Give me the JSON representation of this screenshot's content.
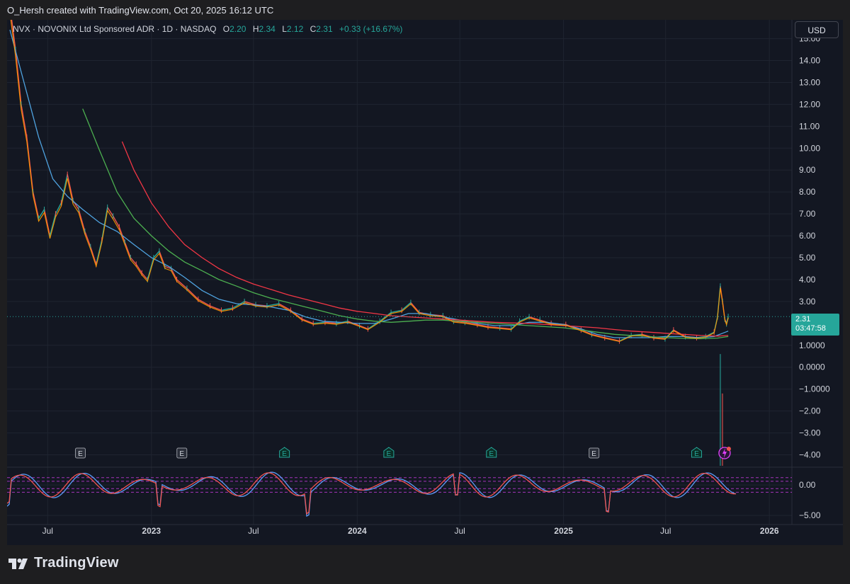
{
  "header": {
    "credit": "O_Hersh created with TradingView.com, Oct 20, 2025 16:12 UTC"
  },
  "legend": {
    "symbol": "NVX · NOVONIX Ltd Sponsored ADR · 1D · NASDAQ",
    "open_label": "O",
    "open": "2.20",
    "high_label": "H",
    "high": "2.34",
    "low_label": "L",
    "low": "2.12",
    "close_label": "C",
    "close": "2.31",
    "change": "+0.33 (+16.67%)"
  },
  "currency_button": "USD",
  "last_price": {
    "price": "2.31",
    "countdown": "03:47:58"
  },
  "footer": {
    "brand": "TradingView"
  },
  "colors": {
    "background": "#131722",
    "grid": "#1f2430",
    "up": "#26a69a",
    "down": "#ef5350",
    "ma_orange": "#ff9800",
    "ma_blue": "#2962ff",
    "ma_lightblue": "#4fa3e0",
    "ma_green": "#4caf50",
    "ma_red": "#f23645",
    "stoch_k": "#5b9cf6",
    "stoch_d": "#ef5350",
    "stoch_levels": "#e040fb"
  },
  "chart_data": [
    {
      "type": "line",
      "title": "NVX · NOVONIX Ltd Sponsored ADR · 1D · NASDAQ",
      "xlabel": "",
      "ylabel": "",
      "x_ticks": [
        "Jul",
        "2023",
        "Jul",
        "2024",
        "Jul",
        "2025",
        "Jul",
        "2026"
      ],
      "x_tick_dates": [
        "2022-07-01",
        "2023-01-01",
        "2023-07-01",
        "2024-01-01",
        "2024-07-01",
        "2025-01-01",
        "2025-07-01",
        "2026-01-01"
      ],
      "x_range": [
        "2022-04-20",
        "2026-02-10"
      ],
      "y_ticks": [
        "15.00",
        "14.00",
        "13.00",
        "12.00",
        "11.00",
        "10.00",
        "9.00",
        "8.00",
        "7.00",
        "6.00",
        "5.00",
        "4.00",
        "3.00",
        "1.0000",
        "0.0000",
        "−1.0000",
        "−2.00",
        "−3.00",
        "−4.00"
      ],
      "y_range": [
        -4.5,
        15.6
      ],
      "grid": true,
      "series": [
        {
          "role": "price",
          "points": [
            [
              "2022-04-25",
              16.5
            ],
            [
              "2022-05-05",
              14.5
            ],
            [
              "2022-05-15",
              12.0
            ],
            [
              "2022-05-25",
              10.5
            ],
            [
              "2022-06-05",
              8.0
            ],
            [
              "2022-06-15",
              6.8
            ],
            [
              "2022-06-25",
              7.2
            ],
            [
              "2022-07-05",
              6.0
            ],
            [
              "2022-07-15",
              7.0
            ],
            [
              "2022-07-25",
              7.5
            ],
            [
              "2022-08-05",
              8.8
            ],
            [
              "2022-08-15",
              7.6
            ],
            [
              "2022-08-25",
              7.2
            ],
            [
              "2022-09-05",
              6.2
            ],
            [
              "2022-09-15",
              5.5
            ],
            [
              "2022-09-25",
              4.7
            ],
            [
              "2022-10-05",
              5.8
            ],
            [
              "2022-10-15",
              7.3
            ],
            [
              "2022-10-25",
              6.9
            ],
            [
              "2022-11-05",
              6.4
            ],
            [
              "2022-11-15",
              5.7
            ],
            [
              "2022-11-25",
              5.0
            ],
            [
              "2022-12-05",
              4.7
            ],
            [
              "2022-12-15",
              4.3
            ],
            [
              "2022-12-25",
              4.0
            ],
            [
              "2023-01-05",
              5.0
            ],
            [
              "2023-01-15",
              5.3
            ],
            [
              "2023-01-25",
              4.6
            ],
            [
              "2023-02-05",
              4.5
            ],
            [
              "2023-02-15",
              4.0
            ],
            [
              "2023-03-05",
              3.6
            ],
            [
              "2023-03-25",
              3.1
            ],
            [
              "2023-04-15",
              2.8
            ],
            [
              "2023-05-05",
              2.6
            ],
            [
              "2023-05-25",
              2.7
            ],
            [
              "2023-06-15",
              3.0
            ],
            [
              "2023-07-05",
              2.85
            ],
            [
              "2023-07-25",
              2.8
            ],
            [
              "2023-08-15",
              2.9
            ],
            [
              "2023-09-05",
              2.6
            ],
            [
              "2023-09-25",
              2.2
            ],
            [
              "2023-10-15",
              2.0
            ],
            [
              "2023-11-05",
              2.05
            ],
            [
              "2023-11-25",
              2.0
            ],
            [
              "2023-12-15",
              2.1
            ],
            [
              "2024-01-05",
              1.9
            ],
            [
              "2024-01-20",
              1.75
            ],
            [
              "2024-02-10",
              2.1
            ],
            [
              "2024-03-01",
              2.5
            ],
            [
              "2024-03-20",
              2.6
            ],
            [
              "2024-04-05",
              2.95
            ],
            [
              "2024-04-20",
              2.5
            ],
            [
              "2024-05-10",
              2.4
            ],
            [
              "2024-06-01",
              2.35
            ],
            [
              "2024-06-20",
              2.1
            ],
            [
              "2024-07-10",
              2.05
            ],
            [
              "2024-08-01",
              1.95
            ],
            [
              "2024-08-20",
              1.85
            ],
            [
              "2024-09-10",
              1.8
            ],
            [
              "2024-09-30",
              1.75
            ],
            [
              "2024-10-15",
              2.1
            ],
            [
              "2024-11-01",
              2.3
            ],
            [
              "2024-11-20",
              2.15
            ],
            [
              "2024-12-10",
              2.0
            ],
            [
              "2025-01-05",
              1.95
            ],
            [
              "2025-02-01",
              1.7
            ],
            [
              "2025-02-20",
              1.5
            ],
            [
              "2025-03-15",
              1.35
            ],
            [
              "2025-04-10",
              1.2
            ],
            [
              "2025-05-01",
              1.45
            ],
            [
              "2025-05-20",
              1.5
            ],
            [
              "2025-06-10",
              1.35
            ],
            [
              "2025-06-30",
              1.3
            ],
            [
              "2025-07-15",
              1.7
            ],
            [
              "2025-08-05",
              1.4
            ],
            [
              "2025-08-25",
              1.35
            ],
            [
              "2025-09-10",
              1.4
            ],
            [
              "2025-09-25",
              1.6
            ],
            [
              "2025-10-01",
              2.3
            ],
            [
              "2025-10-06",
              3.7
            ],
            [
              "2025-10-10",
              3.0
            ],
            [
              "2025-10-14",
              2.2
            ],
            [
              "2025-10-17",
              1.98
            ],
            [
              "2025-10-20",
              2.31
            ]
          ]
        },
        {
          "role": "moving-average",
          "color": "#4fa3e0",
          "points": [
            [
              "2022-04-25",
              15.4
            ],
            [
              "2022-05-20",
              13.0
            ],
            [
              "2022-06-15",
              10.5
            ],
            [
              "2022-07-10",
              8.6
            ],
            [
              "2022-08-05",
              7.8
            ],
            [
              "2022-09-01",
              7.2
            ],
            [
              "2022-10-01",
              6.6
            ],
            [
              "2022-11-01",
              6.2
            ],
            [
              "2022-12-01",
              5.6
            ],
            [
              "2023-01-01",
              5.0
            ],
            [
              "2023-02-01",
              4.6
            ],
            [
              "2023-03-01",
              4.1
            ],
            [
              "2023-04-01",
              3.5
            ],
            [
              "2023-05-01",
              3.1
            ],
            [
              "2023-06-01",
              2.9
            ],
            [
              "2023-07-01",
              2.85
            ],
            [
              "2023-08-01",
              2.75
            ],
            [
              "2023-09-01",
              2.6
            ],
            [
              "2023-10-01",
              2.3
            ],
            [
              "2023-11-01",
              2.1
            ],
            [
              "2023-12-01",
              2.05
            ],
            [
              "2024-01-01",
              2.0
            ],
            [
              "2024-02-01",
              2.0
            ],
            [
              "2024-03-01",
              2.2
            ],
            [
              "2024-04-01",
              2.45
            ],
            [
              "2024-05-01",
              2.45
            ],
            [
              "2024-06-01",
              2.3
            ],
            [
              "2024-07-01",
              2.15
            ],
            [
              "2024-08-01",
              2.0
            ],
            [
              "2024-09-01",
              1.9
            ],
            [
              "2024-10-01",
              1.9
            ],
            [
              "2024-11-01",
              2.05
            ],
            [
              "2024-12-01",
              2.05
            ],
            [
              "2025-01-01",
              1.95
            ],
            [
              "2025-02-01",
              1.75
            ],
            [
              "2025-03-01",
              1.5
            ],
            [
              "2025-04-01",
              1.35
            ],
            [
              "2025-05-01",
              1.35
            ],
            [
              "2025-06-01",
              1.35
            ],
            [
              "2025-07-01",
              1.4
            ],
            [
              "2025-08-01",
              1.4
            ],
            [
              "2025-09-01",
              1.35
            ],
            [
              "2025-09-25",
              1.4
            ],
            [
              "2025-10-10",
              1.55
            ],
            [
              "2025-10-20",
              1.65
            ]
          ]
        },
        {
          "role": "moving-average",
          "color": "#4caf50",
          "points": [
            [
              "2022-09-01",
              11.8
            ],
            [
              "2022-10-01",
              9.9
            ],
            [
              "2022-11-01",
              8.0
            ],
            [
              "2022-12-01",
              6.8
            ],
            [
              "2023-01-01",
              6.0
            ],
            [
              "2023-02-01",
              5.3
            ],
            [
              "2023-03-01",
              4.8
            ],
            [
              "2023-04-01",
              4.4
            ],
            [
              "2023-05-01",
              4.0
            ],
            [
              "2023-06-01",
              3.7
            ],
            [
              "2023-07-01",
              3.4
            ],
            [
              "2023-08-01",
              3.15
            ],
            [
              "2023-09-01",
              2.95
            ],
            [
              "2023-10-01",
              2.75
            ],
            [
              "2023-11-01",
              2.55
            ],
            [
              "2023-12-01",
              2.35
            ],
            [
              "2024-01-01",
              2.2
            ],
            [
              "2024-02-01",
              2.1
            ],
            [
              "2024-03-01",
              2.05
            ],
            [
              "2024-04-01",
              2.1
            ],
            [
              "2024-05-01",
              2.15
            ],
            [
              "2024-06-01",
              2.15
            ],
            [
              "2024-07-01",
              2.1
            ],
            [
              "2024-08-01",
              2.05
            ],
            [
              "2024-09-01",
              2.0
            ],
            [
              "2024-10-01",
              1.95
            ],
            [
              "2024-11-01",
              1.9
            ],
            [
              "2024-12-01",
              1.85
            ],
            [
              "2025-01-01",
              1.8
            ],
            [
              "2025-02-01",
              1.7
            ],
            [
              "2025-03-01",
              1.6
            ],
            [
              "2025-04-01",
              1.5
            ],
            [
              "2025-05-01",
              1.45
            ],
            [
              "2025-06-01",
              1.4
            ],
            [
              "2025-07-01",
              1.35
            ],
            [
              "2025-08-01",
              1.32
            ],
            [
              "2025-09-01",
              1.3
            ],
            [
              "2025-10-01",
              1.33
            ],
            [
              "2025-10-20",
              1.4
            ]
          ]
        },
        {
          "role": "moving-average",
          "color": "#f23645",
          "points": [
            [
              "2022-11-10",
              10.3
            ],
            [
              "2022-12-01",
              9.0
            ],
            [
              "2023-01-01",
              7.5
            ],
            [
              "2023-02-01",
              6.4
            ],
            [
              "2023-03-01",
              5.6
            ],
            [
              "2023-04-01",
              5.0
            ],
            [
              "2023-05-01",
              4.5
            ],
            [
              "2023-06-01",
              4.1
            ],
            [
              "2023-07-01",
              3.8
            ],
            [
              "2023-08-01",
              3.55
            ],
            [
              "2023-09-01",
              3.3
            ],
            [
              "2023-10-01",
              3.1
            ],
            [
              "2023-11-01",
              2.9
            ],
            [
              "2023-12-01",
              2.7
            ],
            [
              "2024-01-01",
              2.55
            ],
            [
              "2024-02-01",
              2.45
            ],
            [
              "2024-03-01",
              2.35
            ],
            [
              "2024-04-01",
              2.3
            ],
            [
              "2024-05-01",
              2.25
            ],
            [
              "2024-06-01",
              2.2
            ],
            [
              "2024-07-01",
              2.15
            ],
            [
              "2024-08-01",
              2.1
            ],
            [
              "2024-09-01",
              2.05
            ],
            [
              "2024-10-01",
              2.02
            ],
            [
              "2024-11-01",
              2.0
            ],
            [
              "2024-12-01",
              1.95
            ],
            [
              "2025-01-01",
              1.9
            ],
            [
              "2025-02-01",
              1.85
            ],
            [
              "2025-03-01",
              1.8
            ],
            [
              "2025-04-01",
              1.72
            ],
            [
              "2025-05-01",
              1.65
            ],
            [
              "2025-06-01",
              1.6
            ],
            [
              "2025-07-01",
              1.55
            ],
            [
              "2025-08-01",
              1.5
            ],
            [
              "2025-09-01",
              1.45
            ],
            [
              "2025-10-01",
              1.42
            ],
            [
              "2025-10-20",
              1.45
            ]
          ]
        }
      ],
      "earnings_markers": [
        {
          "label": "E",
          "date": "2022-08-28",
          "style": "past"
        },
        {
          "label": "E",
          "date": "2023-02-24",
          "style": "past"
        },
        {
          "label": "E",
          "date": "2023-08-25",
          "style": "reported"
        },
        {
          "label": "E",
          "date": "2024-02-26",
          "style": "reported"
        },
        {
          "label": "E",
          "date": "2024-08-26",
          "style": "reported"
        },
        {
          "label": "E",
          "date": "2025-02-24",
          "style": "past"
        },
        {
          "label": "E",
          "date": "2025-08-25",
          "style": "reported"
        }
      ],
      "volume_spike_date": "2025-10-06"
    },
    {
      "type": "line",
      "title": "",
      "y_ticks": [
        "0.00",
        "−5.00"
      ],
      "y_range": [
        -6.5,
        2.8
      ],
      "levels": [
        1.2,
        0.6,
        -0.6,
        -1.2
      ],
      "grid": true
    }
  ]
}
